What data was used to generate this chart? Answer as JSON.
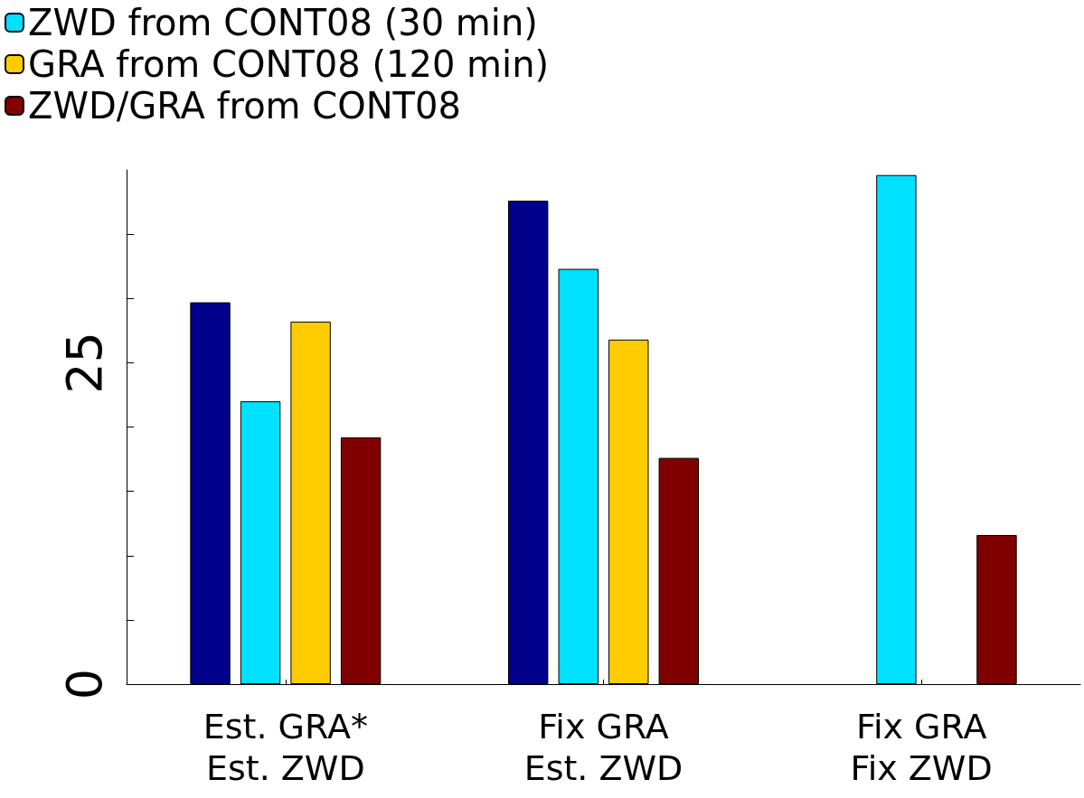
{
  "chart_data": {
    "type": "bar",
    "categories": [
      "Est. GRA*\nEst. ZWD",
      "Fix GRA\nEst. ZWD",
      "Fix GRA\nFix ZWD"
    ],
    "series": [
      {
        "color": "#00008b",
        "values": [
          29.7,
          37.6,
          null
        ]
      },
      {
        "name": "ZWD from CONT08 (30 min)",
        "color": "#00e0ff",
        "values": [
          22.0,
          32.3,
          39.6
        ]
      },
      {
        "name": "GRA from CONT08 (120 min)",
        "color": "#ffcc00",
        "values": [
          28.2,
          26.8,
          null
        ]
      },
      {
        "name": "ZWD/GRA from CONT08",
        "color": "#800000",
        "values": [
          19.2,
          17.6,
          11.6
        ]
      }
    ],
    "ylim": [
      0,
      40
    ],
    "yticks": [
      0,
      {
        "value": 5,
        "label": null
      },
      {
        "value": 10,
        "label": null
      },
      {
        "value": 15,
        "label": null
      },
      {
        "value": 20,
        "label": null
      },
      25,
      {
        "value": 30,
        "label": null
      },
      {
        "value": 35,
        "label": null
      }
    ],
    "legend": "top left",
    "grid": false
  }
}
